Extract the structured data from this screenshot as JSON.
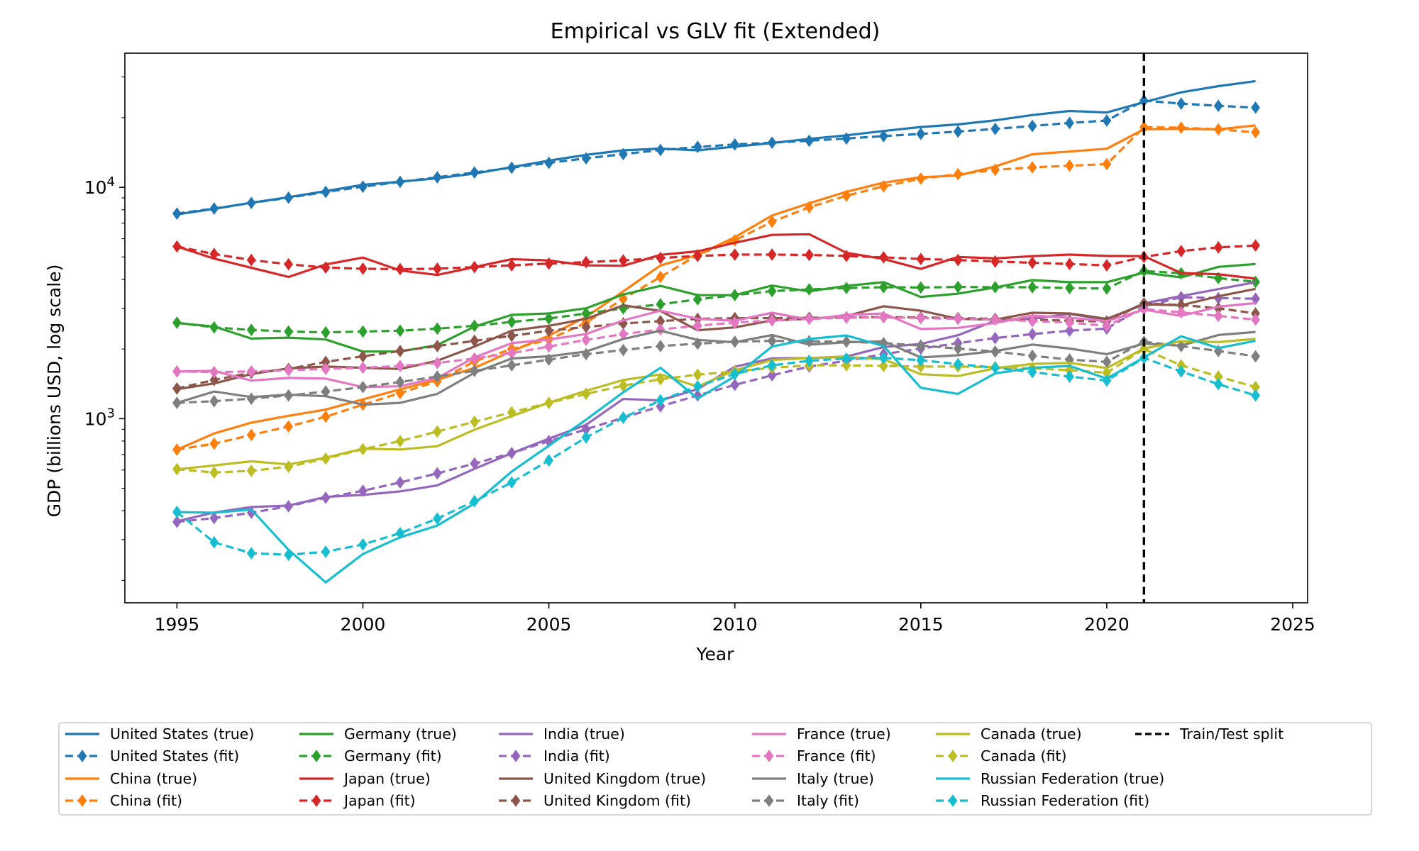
{
  "chart_data": {
    "type": "line",
    "title": "Empirical vs GLV fit (Extended)",
    "xlabel": "Year",
    "ylabel": "GDP (billions USD, log scale)",
    "yscale": "log",
    "xlim": [
      1993.6,
      2025.4
    ],
    "ylim": [
      160,
      38000
    ],
    "x_ticks": [
      1995,
      2000,
      2005,
      2010,
      2015,
      2020,
      2025
    ],
    "y_ticks": [
      {
        "value": 1000,
        "base": "10",
        "exp": "3"
      },
      {
        "value": 10000,
        "base": "10",
        "exp": "4"
      }
    ],
    "legend_location": "below plot",
    "split": {
      "year": 2021,
      "label": "Train/Test split",
      "color": "#000000"
    },
    "x_true": [
      1995,
      1996,
      1997,
      1998,
      1999,
      2000,
      2001,
      2002,
      2003,
      2004,
      2005,
      2006,
      2007,
      2008,
      2009,
      2010,
      2011,
      2012,
      2013,
      2014,
      2015,
      2016,
      2017,
      2018,
      2019,
      2020,
      2021,
      2022,
      2023,
      2024
    ],
    "x_fit": [
      1995,
      1996,
      1997,
      1998,
      1999,
      2000,
      2001,
      2002,
      2003,
      2004,
      2005,
      2006,
      2007,
      2008,
      2009,
      2010,
      2011,
      2012,
      2013,
      2014,
      2015,
      2016,
      2017,
      2018,
      2019,
      2020,
      2021,
      2022,
      2023,
      2024
    ],
    "series": [
      {
        "name": "United States",
        "color": "#1f77b4",
        "true_label": "United States (true)",
        "fit_label": "United States (fit)",
        "true": [
          7640,
          8070,
          8580,
          9060,
          9630,
          10250,
          10580,
          10940,
          11460,
          12220,
          13040,
          13810,
          14450,
          14710,
          14450,
          14990,
          15540,
          16200,
          16780,
          17520,
          18220,
          18710,
          19480,
          20530,
          21380,
          21060,
          23320,
          25740,
          27360,
          28780
        ],
        "fit": [
          7700,
          8100,
          8560,
          9020,
          9550,
          10060,
          10560,
          11050,
          11600,
          12150,
          12760,
          13340,
          13920,
          14500,
          14950,
          15320,
          15590,
          15900,
          16260,
          16650,
          17020,
          17420,
          17880,
          18420,
          18980,
          19430,
          23700,
          23000,
          22500,
          22100
        ]
      },
      {
        "name": "China",
        "color": "#ff7f0e",
        "true_label": "China (true)",
        "fit_label": "China (fit)",
        "true": [
          734,
          863,
          961,
          1029,
          1094,
          1211,
          1339,
          1471,
          1660,
          1955,
          2286,
          2752,
          3550,
          4594,
          5102,
          6087,
          7552,
          8532,
          9570,
          10475,
          11062,
          11233,
          12310,
          13895,
          14280,
          14688,
          17820,
          17880,
          17790,
          18530
        ],
        "fit": [
          735,
          780,
          850,
          925,
          1020,
          1150,
          1290,
          1450,
          1770,
          2000,
          2200,
          2600,
          3300,
          4100,
          5100,
          5900,
          7100,
          8200,
          9200,
          10100,
          10900,
          11400,
          11900,
          12200,
          12400,
          12600,
          18200,
          18100,
          17800,
          17300
        ]
      },
      {
        "name": "Germany",
        "color": "#2ca02c",
        "true_label": "Germany (true)",
        "fit_label": "Germany (fit)",
        "true": [
          2590,
          2500,
          2220,
          2240,
          2200,
          1950,
          1950,
          2080,
          2500,
          2810,
          2850,
          3000,
          3440,
          3750,
          3420,
          3420,
          3760,
          3550,
          3750,
          3890,
          3360,
          3470,
          3690,
          3970,
          3890,
          3890,
          4280,
          4080,
          4530,
          4660
        ],
        "fit": [
          2600,
          2480,
          2420,
          2380,
          2360,
          2380,
          2400,
          2450,
          2520,
          2620,
          2710,
          2850,
          3000,
          3120,
          3280,
          3420,
          3560,
          3620,
          3670,
          3700,
          3690,
          3710,
          3700,
          3700,
          3670,
          3650,
          4350,
          4250,
          4050,
          3900
        ]
      },
      {
        "name": "Japan",
        "color": "#d62728",
        "true_label": "Japan (true)",
        "fit_label": "Japan (fit)",
        "true": [
          5550,
          4920,
          4490,
          4100,
          4640,
          4970,
          4370,
          4180,
          4520,
          4890,
          4830,
          4600,
          4580,
          5110,
          5290,
          5760,
          6230,
          6270,
          5210,
          4900,
          4440,
          5000,
          4930,
          5040,
          5120,
          5050,
          5040,
          4260,
          4210,
          4030
        ],
        "fit": [
          5550,
          5150,
          4850,
          4650,
          4500,
          4450,
          4430,
          4450,
          4520,
          4600,
          4680,
          4750,
          4830,
          4950,
          5050,
          5120,
          5120,
          5100,
          5050,
          4980,
          4900,
          4850,
          4780,
          4720,
          4660,
          4600,
          5000,
          5300,
          5500,
          5600
        ]
      },
      {
        "name": "India",
        "color": "#9467bd",
        "true_label": "India (true)",
        "fit_label": "India (fit)",
        "true": [
          360,
          393,
          415,
          421,
          459,
          468,
          485,
          515,
          607,
          709,
          820,
          940,
          1217,
          1199,
          1342,
          1676,
          1823,
          1828,
          1857,
          2039,
          2103,
          2295,
          2651,
          2702,
          2835,
          2671,
          3150,
          3390,
          3630,
          3890
        ],
        "fit": [
          358,
          372,
          392,
          418,
          455,
          488,
          530,
          580,
          640,
          710,
          800,
          900,
          1010,
          1130,
          1260,
          1400,
          1540,
          1680,
          1780,
          1900,
          2010,
          2120,
          2230,
          2320,
          2400,
          2450,
          3050,
          3350,
          3320,
          3300
        ]
      },
      {
        "name": "United Kingdom",
        "color": "#8c564b",
        "true_label": "United Kingdom (true)",
        "fit_label": "United Kingdom (fit)",
        "true": [
          1340,
          1420,
          1560,
          1650,
          1680,
          1660,
          1640,
          1780,
          2050,
          2400,
          2520,
          2700,
          3090,
          2920,
          2410,
          2480,
          2660,
          2700,
          2780,
          3060,
          2930,
          2700,
          2680,
          2870,
          2850,
          2700,
          3120,
          3090,
          3380,
          3640
        ],
        "fit": [
          1350,
          1470,
          1580,
          1640,
          1760,
          1860,
          1960,
          2060,
          2170,
          2280,
          2400,
          2490,
          2580,
          2640,
          2700,
          2720,
          2720,
          2730,
          2740,
          2750,
          2740,
          2720,
          2700,
          2680,
          2650,
          2630,
          3150,
          3100,
          3000,
          2850
        ]
      },
      {
        "name": "France",
        "color": "#e377c2",
        "true_label": "France (true)",
        "fit_label": "France (fit)",
        "true": [
          1600,
          1610,
          1460,
          1500,
          1490,
          1370,
          1380,
          1500,
          1840,
          2120,
          2200,
          2320,
          2660,
          2930,
          2700,
          2650,
          2870,
          2680,
          2810,
          2850,
          2440,
          2470,
          2590,
          2790,
          2730,
          2640,
          2960,
          2780,
          3050,
          3160
        ],
        "fit": [
          1600,
          1590,
          1600,
          1620,
          1640,
          1660,
          1690,
          1740,
          1820,
          1920,
          2050,
          2190,
          2320,
          2430,
          2520,
          2600,
          2660,
          2700,
          2730,
          2740,
          2720,
          2700,
          2680,
          2640,
          2600,
          2520,
          2980,
          2880,
          2780,
          2680
        ]
      },
      {
        "name": "Italy",
        "color": "#7f7f7f",
        "true_label": "Italy (true)",
        "fit_label": "Italy (fit)",
        "true": [
          1170,
          1310,
          1240,
          1270,
          1250,
          1150,
          1170,
          1280,
          1580,
          1820,
          1860,
          1950,
          2210,
          2400,
          2190,
          2140,
          2300,
          2090,
          2140,
          2160,
          1840,
          1880,
          1960,
          2090,
          2010,
          1900,
          2110,
          2070,
          2300,
          2370
        ],
        "fit": [
          1170,
          1190,
          1220,
          1260,
          1310,
          1370,
          1440,
          1520,
          1610,
          1700,
          1800,
          1900,
          1980,
          2060,
          2110,
          2150,
          2170,
          2160,
          2150,
          2120,
          2070,
          2010,
          1950,
          1870,
          1800,
          1760,
          2150,
          2060,
          1960,
          1860
        ]
      },
      {
        "name": "Canada",
        "color": "#bcbd22",
        "true_label": "Canada (true)",
        "fit_label": "Canada (fit)",
        "true": [
          604,
          628,
          654,
          634,
          678,
          742,
          736,
          760,
          896,
          1026,
          1173,
          1319,
          1469,
          1553,
          1376,
          1617,
          1793,
          1829,
          1847,
          1806,
          1556,
          1528,
          1650,
          1725,
          1742,
          1655,
          2008,
          2162,
          2142,
          2214
        ],
        "fit": [
          605,
          585,
          595,
          620,
          672,
          738,
          800,
          880,
          970,
          1065,
          1170,
          1280,
          1390,
          1480,
          1550,
          1600,
          1660,
          1700,
          1700,
          1690,
          1680,
          1680,
          1670,
          1650,
          1620,
          1580,
          2000,
          1700,
          1520,
          1370
        ]
      },
      {
        "name": "Russian Federation",
        "color": "#17becf",
        "true_label": "Russian Federation (true)",
        "fit_label": "Russian Federation (fit)",
        "true": [
          395,
          392,
          405,
          271,
          196,
          260,
          307,
          345,
          430,
          591,
          764,
          990,
          1300,
          1660,
          1222,
          1525,
          2050,
          2210,
          2290,
          2060,
          1360,
          1280,
          1570,
          1660,
          1690,
          1490,
          1840,
          2270,
          2020,
          2170
        ],
        "fit": [
          395,
          292,
          262,
          258,
          266,
          286,
          320,
          370,
          440,
          530,
          660,
          830,
          1010,
          1200,
          1380,
          1560,
          1700,
          1780,
          1820,
          1830,
          1790,
          1720,
          1660,
          1590,
          1520,
          1460,
          1830,
          1600,
          1410,
          1260
        ]
      }
    ]
  }
}
